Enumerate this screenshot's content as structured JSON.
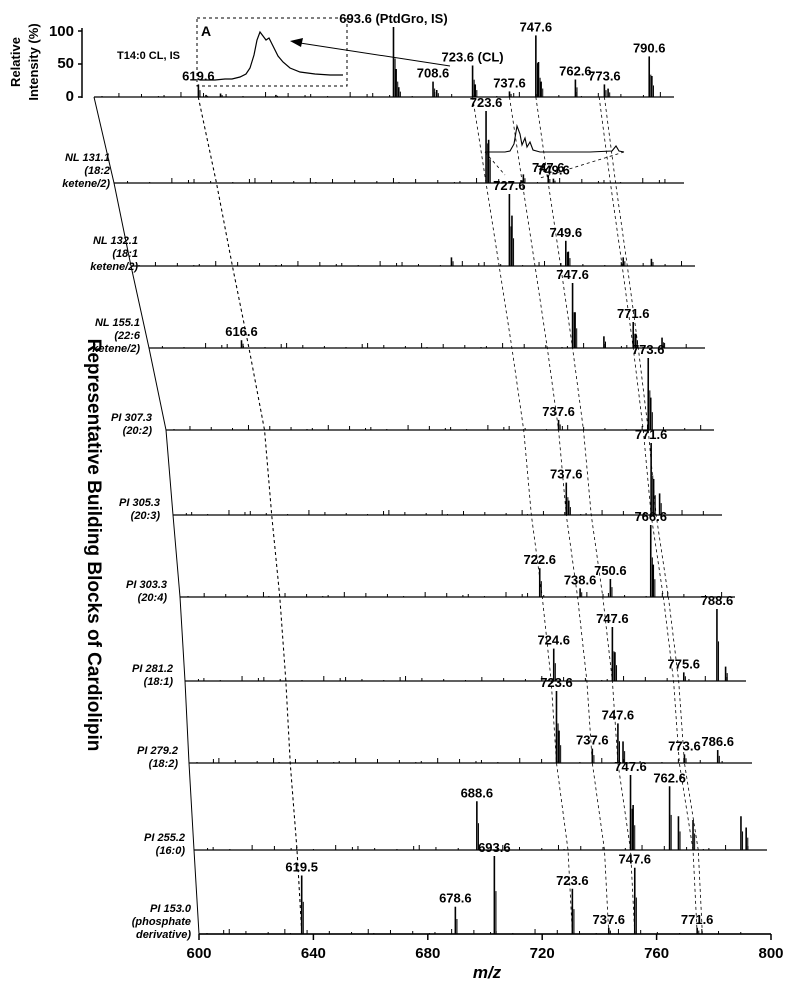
{
  "chart_data": {
    "type": "line",
    "title": "",
    "side_title": "Representative Building Blocks of Cardiolipin",
    "xlabel": "m/z",
    "ylabel": [
      "Relative",
      "Intensity (%)"
    ],
    "xlim": [
      600,
      800
    ],
    "xticks": [
      "600",
      "640",
      "680",
      "720",
      "760",
      "800"
    ],
    "yticks": [
      "100",
      "50",
      "0"
    ],
    "ylim": [
      0,
      100
    ],
    "inset_label": "A",
    "panels": [
      {
        "label": [],
        "peaks": [
          {
            "mz": 619.6,
            "h": 18,
            "label": "619.6"
          },
          {
            "mz": 622.5,
            "h": 3
          },
          {
            "mz": 628.0,
            "h": 5
          },
          {
            "mz": 649.0,
            "h": 3
          },
          {
            "mz": 693.6,
            "h": 100,
            "label": "693.6 (PtdGro, IS)"
          },
          {
            "mz": 694.6,
            "h": 40
          },
          {
            "mz": 695.6,
            "h": 14
          },
          {
            "mz": 708.6,
            "h": 22,
            "label": "708.6"
          },
          {
            "mz": 710.0,
            "h": 10
          },
          {
            "mz": 723.6,
            "h": 45,
            "label": "723.6 (CL)"
          },
          {
            "mz": 724.6,
            "h": 18
          },
          {
            "mz": 737.6,
            "h": 8,
            "label": "737.6"
          },
          {
            "mz": 747.6,
            "h": 88,
            "label": "747.6"
          },
          {
            "mz": 748.6,
            "h": 50
          },
          {
            "mz": 749.6,
            "h": 22
          },
          {
            "mz": 762.6,
            "h": 25,
            "label": "762.6"
          },
          {
            "mz": 773.6,
            "h": 18,
            "label": "773.6"
          },
          {
            "mz": 775.0,
            "h": 12
          },
          {
            "mz": 790.6,
            "h": 58,
            "label": "790.6"
          },
          {
            "mz": 791.6,
            "h": 30
          }
        ],
        "annotations": [
          "T14:0 CL, IS"
        ]
      },
      {
        "label": [
          "NL 131.1",
          "(18:2",
          "ketene/2)"
        ],
        "peaks": [
          {
            "mz": 723.6,
            "h": 100,
            "label": "723.6"
          },
          {
            "mz": 724.6,
            "h": 60
          },
          {
            "mz": 738.0,
            "h": 12
          },
          {
            "mz": 747.6,
            "h": 10,
            "label": "747.6"
          },
          {
            "mz": 749.6,
            "h": 6,
            "label": "749.6"
          }
        ]
      },
      {
        "label": [
          "NL 132.1",
          "(18:1",
          "ketene/2)"
        ],
        "peaks": [
          {
            "mz": 727.6,
            "h": 100,
            "label": "727.6"
          },
          {
            "mz": 728.6,
            "h": 70
          },
          {
            "mz": 749.6,
            "h": 35,
            "label": "749.6"
          },
          {
            "mz": 750.6,
            "h": 20
          },
          {
            "mz": 705.0,
            "h": 12
          },
          {
            "mz": 772.0,
            "h": 12
          },
          {
            "mz": 783.0,
            "h": 10
          }
        ]
      },
      {
        "label": [
          "NL 155.1",
          "(22:6",
          "ketene/2)"
        ],
        "peaks": [
          {
            "mz": 616.6,
            "h": 12,
            "label": "616.6"
          },
          {
            "mz": 747.6,
            "h": 100,
            "label": "747.6"
          },
          {
            "mz": 748.6,
            "h": 55
          },
          {
            "mz": 760.0,
            "h": 18
          },
          {
            "mz": 771.6,
            "h": 40,
            "label": "771.6"
          },
          {
            "mz": 772.6,
            "h": 22
          },
          {
            "mz": 783.0,
            "h": 16
          }
        ]
      },
      {
        "label": [
          "PI 307.3",
          "(20:2)"
        ],
        "peaks": [
          {
            "mz": 737.6,
            "h": 14,
            "label": "737.6"
          },
          {
            "mz": 773.6,
            "h": 100,
            "label": "773.6"
          },
          {
            "mz": 774.6,
            "h": 45
          }
        ]
      },
      {
        "label": [
          "PI 305.3",
          "(20:3)"
        ],
        "peaks": [
          {
            "mz": 737.6,
            "h": 45,
            "label": "737.6"
          },
          {
            "mz": 738.6,
            "h": 20
          },
          {
            "mz": 771.6,
            "h": 100,
            "label": "771.6"
          },
          {
            "mz": 772.6,
            "h": 50
          },
          {
            "mz": 775.0,
            "h": 30
          }
        ]
      },
      {
        "label": [
          "PI 303.3",
          "(20:4)"
        ],
        "peaks": [
          {
            "mz": 722.6,
            "h": 40,
            "label": "722.6"
          },
          {
            "mz": 738.6,
            "h": 12,
            "label": "738.6"
          },
          {
            "mz": 750.6,
            "h": 25,
            "label": "750.6"
          },
          {
            "mz": 766.6,
            "h": 100,
            "label": "766.6"
          },
          {
            "mz": 767.6,
            "h": 45
          }
        ]
      },
      {
        "label": [
          "PI 281.2",
          "(18:1)"
        ],
        "peaks": [
          {
            "mz": 724.6,
            "h": 45,
            "label": "724.6"
          },
          {
            "mz": 747.6,
            "h": 75,
            "label": "747.6"
          },
          {
            "mz": 748.6,
            "h": 40
          },
          {
            "mz": 775.6,
            "h": 12,
            "label": "775.6"
          },
          {
            "mz": 788.6,
            "h": 100,
            "label": "788.6"
          },
          {
            "mz": 792.0,
            "h": 20
          }
        ]
      },
      {
        "label": [
          "PI 279.2",
          "(18:2)"
        ],
        "peaks": [
          {
            "mz": 723.6,
            "h": 100,
            "label": "723.6"
          },
          {
            "mz": 724.6,
            "h": 45
          },
          {
            "mz": 737.6,
            "h": 20,
            "label": "737.6"
          },
          {
            "mz": 747.6,
            "h": 55,
            "label": "747.6"
          },
          {
            "mz": 749.6,
            "h": 30
          },
          {
            "mz": 773.6,
            "h": 12,
            "label": "773.6"
          },
          {
            "mz": 786.6,
            "h": 18,
            "label": "786.6"
          }
        ]
      },
      {
        "label": [
          "PI 255.2",
          "(16:0)"
        ],
        "peaks": [
          {
            "mz": 688.6,
            "h": 65,
            "label": "688.6"
          },
          {
            "mz": 747.6,
            "h": 100,
            "label": "747.6"
          },
          {
            "mz": 748.6,
            "h": 60
          },
          {
            "mz": 762.6,
            "h": 85,
            "label": "762.6"
          },
          {
            "mz": 766.0,
            "h": 45
          },
          {
            "mz": 771.6,
            "h": 40
          },
          {
            "mz": 790.0,
            "h": 45
          },
          {
            "mz": 792.0,
            "h": 30
          }
        ]
      },
      {
        "label": [
          "PI 153.0",
          "(phosphate",
          "derivative)"
        ],
        "peaks": [
          {
            "mz": 619.5,
            "h": 75,
            "label": "619.5"
          },
          {
            "mz": 678.6,
            "h": 35,
            "label": "678.6"
          },
          {
            "mz": 693.6,
            "h": 100,
            "label": "693.6"
          },
          {
            "mz": 723.6,
            "h": 58,
            "label": "723.6"
          },
          {
            "mz": 737.6,
            "h": 8,
            "label": "737.6"
          },
          {
            "mz": 747.6,
            "h": 85,
            "label": "747.6"
          },
          {
            "mz": 771.6,
            "h": 8,
            "label": "771.6"
          }
        ]
      }
    ]
  }
}
